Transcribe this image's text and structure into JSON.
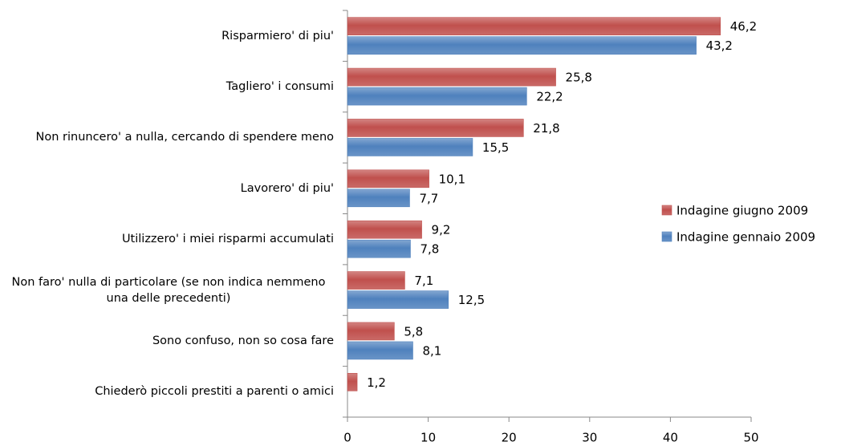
{
  "chart_data": {
    "type": "bar",
    "orientation": "horizontal",
    "categories": [
      "Risparmiero' di piu'",
      "Tagliero' i consumi",
      "Non rinuncero' a nulla, cercando di spendere meno",
      "Lavorero' di piu'",
      "Utilizzero' i miei risparmi accumulati",
      "Non faro' nulla di particolare (se non indica nemmeno una delle precedenti)",
      "Sono confuso, non so cosa fare",
      "Chiederò piccoli prestiti a parenti o amici"
    ],
    "series": [
      {
        "name": "Indagine giugno 2009",
        "color": "#c0504d",
        "values": [
          46.2,
          25.8,
          21.8,
          10.1,
          9.2,
          7.1,
          5.8,
          1.2
        ],
        "value_labels": [
          "46,2",
          "25,8",
          "21,8",
          "10,1",
          "9,2",
          "7,1",
          "5,8",
          "1,2"
        ]
      },
      {
        "name": "Indagine gennaio 2009",
        "color": "#4f81bd",
        "values": [
          43.2,
          22.2,
          15.5,
          7.7,
          7.8,
          12.5,
          8.1,
          null
        ],
        "value_labels": [
          "43,2",
          "22,2",
          "15,5",
          "7,7",
          "7,8",
          "12,5",
          "8,1",
          null
        ]
      }
    ],
    "xlim": [
      0,
      50
    ],
    "xticks": [
      0,
      10,
      20,
      30,
      40,
      50
    ],
    "legend": "right"
  }
}
